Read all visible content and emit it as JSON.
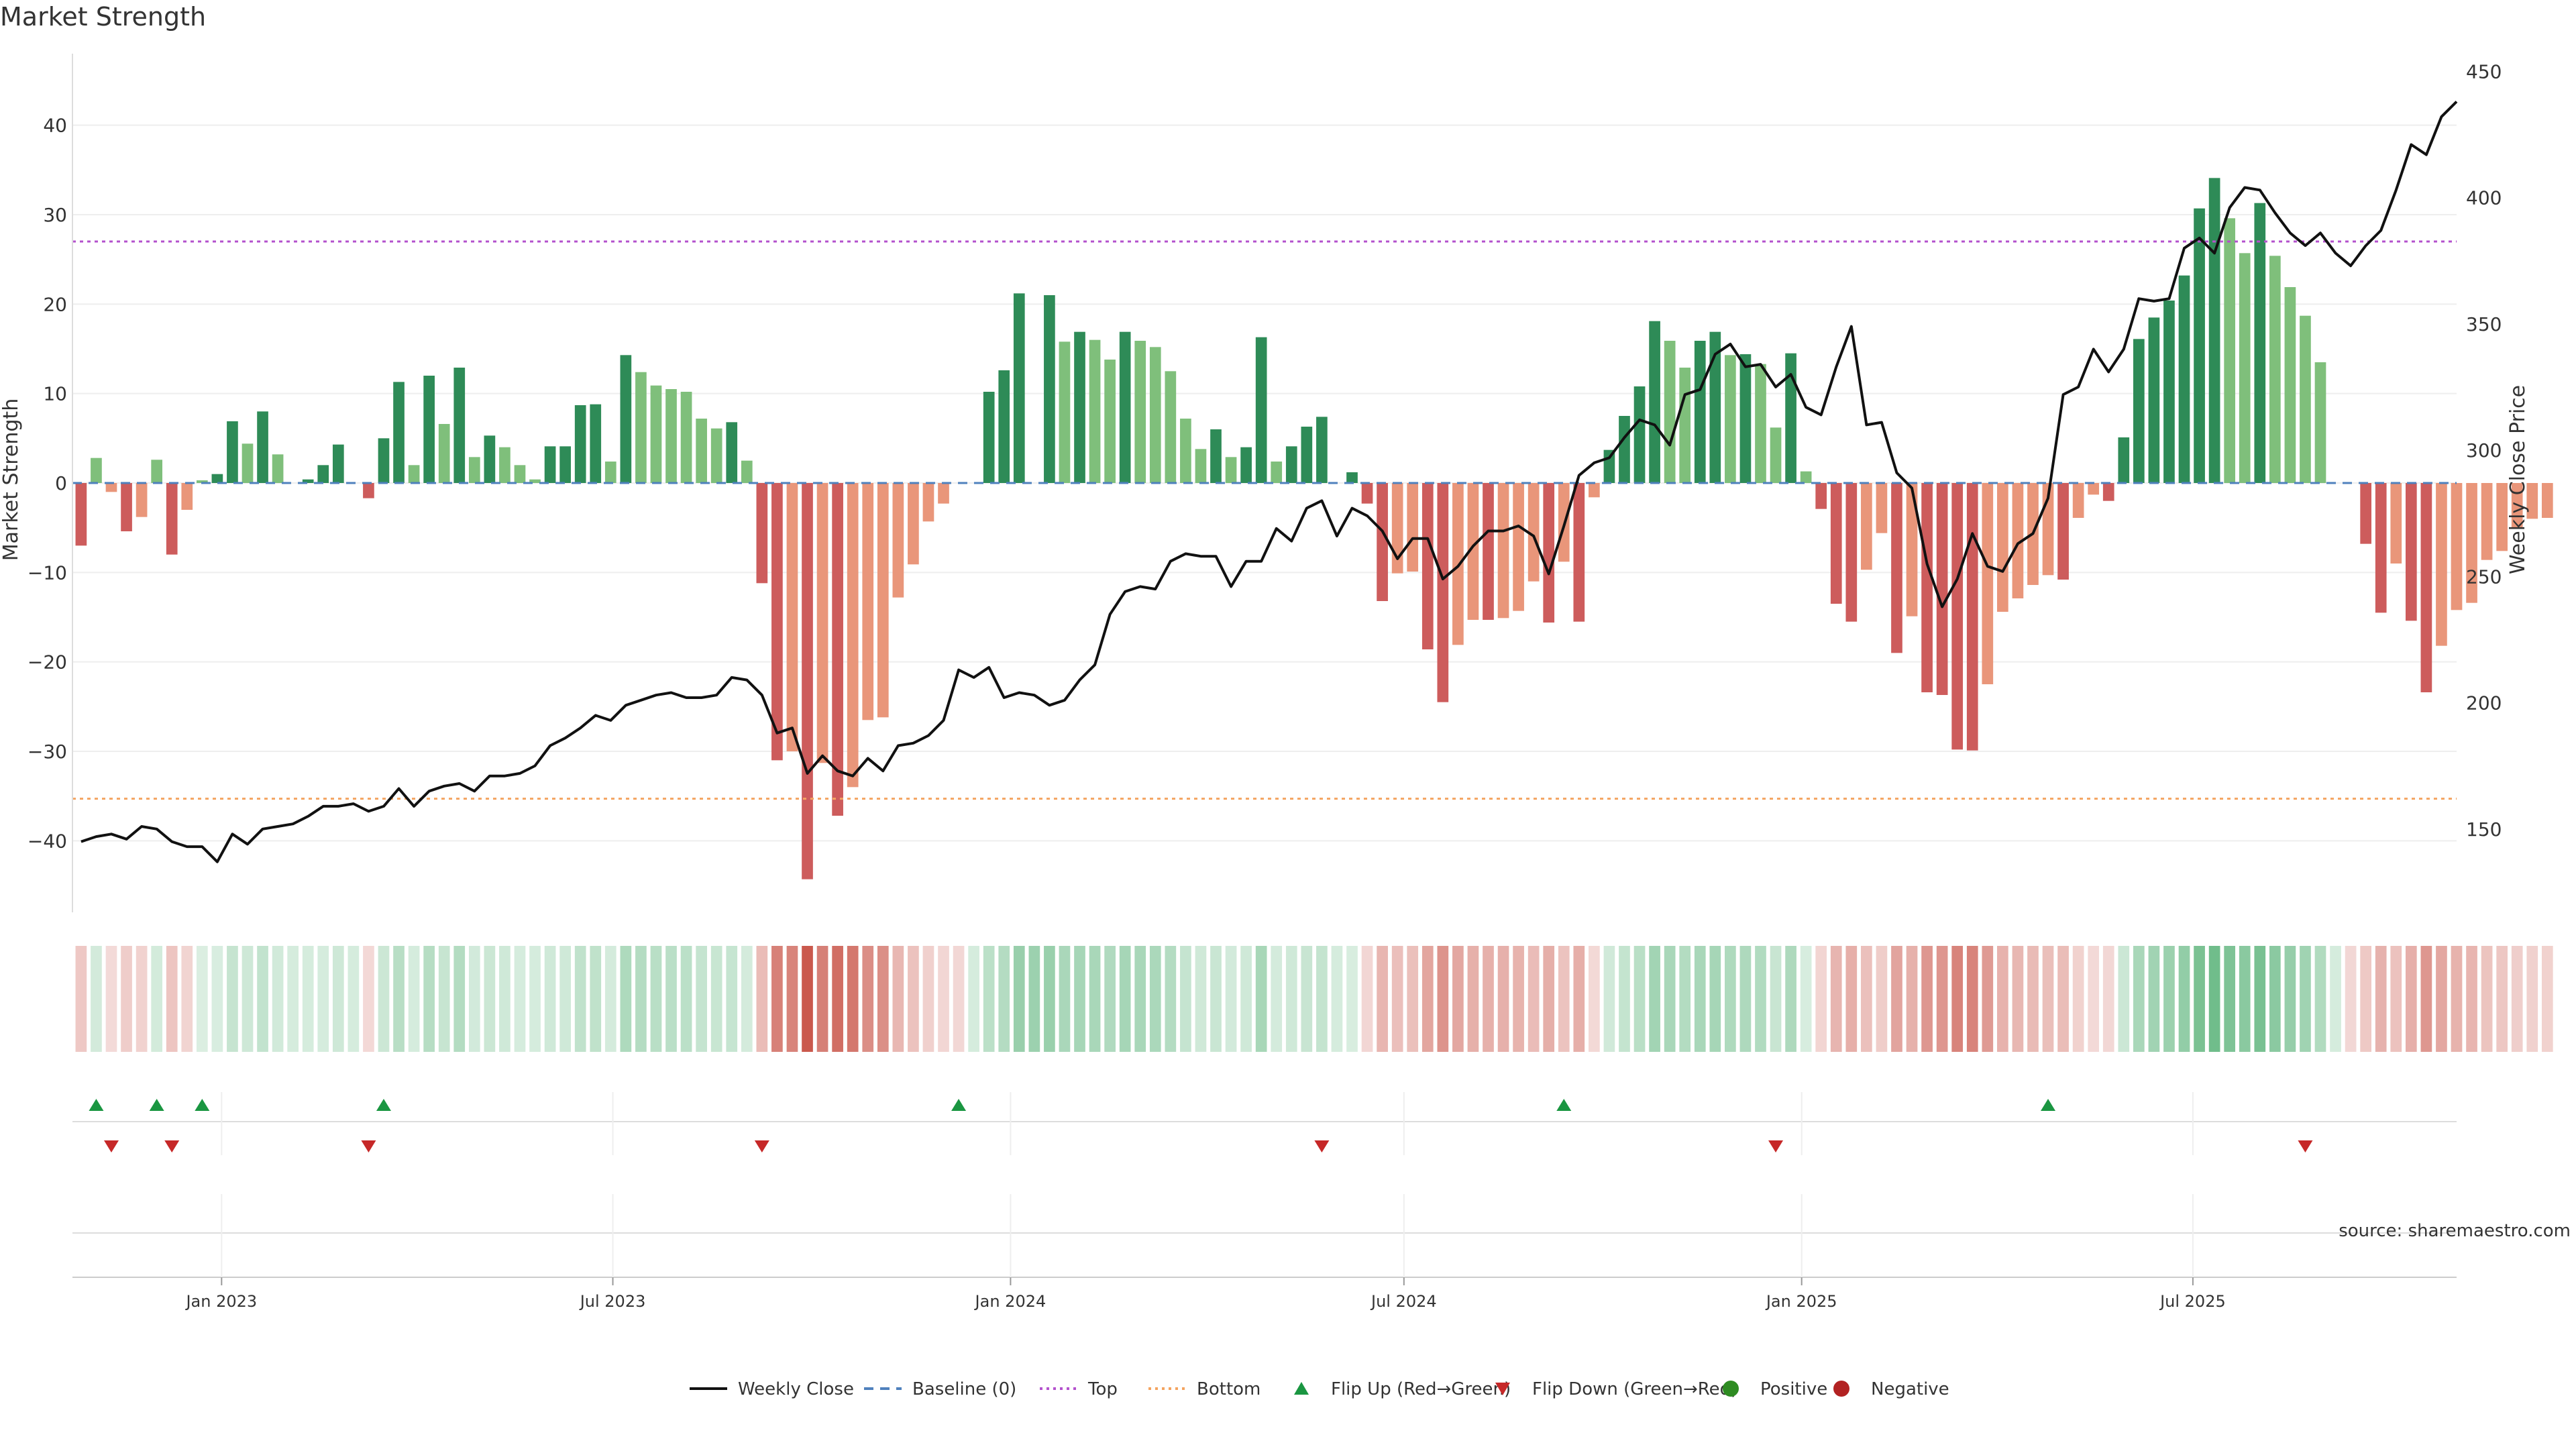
{
  "chart_data": {
    "type": "bar",
    "title": "Market Strength",
    "ylabel": "Market Strength",
    "y2label": "Weekly Close Price",
    "ylim": [
      -48,
      48
    ],
    "y2lim": [
      117,
      457
    ],
    "yticks": [
      -40,
      -30,
      -20,
      -10,
      0,
      10,
      20,
      30,
      40
    ],
    "y2ticks": [
      150,
      200,
      250,
      300,
      350,
      400,
      450
    ],
    "xlim": [
      "2022-10-24",
      "2025-10-31"
    ],
    "xticks": [
      {
        "date": "2023-01-01",
        "label": "Jan 2023"
      },
      {
        "date": "2023-07-01",
        "label": "Jul 2023"
      },
      {
        "date": "2024-01-01",
        "label": "Jan 2024"
      },
      {
        "date": "2024-07-01",
        "label": "Jul 2024"
      },
      {
        "date": "2025-01-01",
        "label": "Jan 2025"
      },
      {
        "date": "2025-07-01",
        "label": "Jul 2025"
      }
    ],
    "top_level": 27,
    "bottom_level": -35.3,
    "start_week": "2022-10-28",
    "strength": [
      -7,
      2.8,
      -1,
      -5.4,
      -3.8,
      2.6,
      -8,
      -3,
      0.3,
      1,
      6.9,
      4.4,
      8,
      3.2,
      0,
      0.4,
      2,
      4.3,
      0,
      -1.7,
      5,
      11.3,
      2,
      12,
      6.6,
      12.9,
      2.9,
      5.3,
      4,
      2,
      0.4,
      4.1,
      4.1,
      8.7,
      8.8,
      2.4,
      14.3,
      12.4,
      10.9,
      10.5,
      10.2,
      7.2,
      6.1,
      6.8,
      2.5,
      -11.2,
      -31,
      -30,
      -44.3,
      -31.3,
      -37.2,
      -34,
      -26.5,
      -26.2,
      -12.8,
      -9.1,
      -4.3,
      -2.3,
      0,
      0,
      10.2,
      12.6,
      21.2,
      0,
      21,
      15.8,
      16.9,
      16,
      13.8,
      16.9,
      15.9,
      15.2,
      12.5,
      7.2,
      3.8,
      6,
      2.9,
      4,
      16.3,
      2.4,
      4.1,
      6.3,
      7.4,
      0,
      1.2,
      -2.3,
      -13.2,
      -10.1,
      -9.9,
      -18.6,
      -24.5,
      -18.1,
      -15.3,
      -15.3,
      -15.1,
      -14.3,
      -11,
      -15.6,
      -8.8,
      -15.5,
      -1.6,
      3.7,
      7.5,
      10.8,
      18.1,
      15.9,
      12.9,
      15.9,
      16.9,
      14.3,
      14.4,
      13.3,
      6.2,
      14.5,
      1.3,
      -2.9,
      -13.5,
      -15.5,
      -9.7,
      -5.6,
      -19,
      -14.9,
      -23.4,
      -23.7,
      -29.8,
      -29.9,
      -22.5,
      -14.4,
      -12.9,
      -11.4,
      -10.3,
      -10.8,
      -3.9,
      -1.3,
      -2,
      5.1,
      16.1,
      18.5,
      20.4,
      23.2,
      30.7,
      34.1,
      29.6,
      25.7,
      31.3,
      25.4,
      21.9,
      18.7,
      13.5,
      0,
      0,
      -6.8,
      -14.5,
      -9,
      -15.4,
      -23.4,
      -18.2,
      -14.2,
      -13.4,
      -8.6,
      -7.6,
      -5.1,
      -4,
      -3.9
    ],
    "weekly_close": [
      145,
      147,
      148,
      146,
      151,
      150,
      145,
      143,
      143,
      137,
      148,
      144,
      150,
      151,
      152,
      155,
      159,
      159,
      160,
      157,
      159,
      166,
      159,
      165,
      167,
      168,
      165,
      171,
      171,
      172,
      175,
      183,
      186,
      190,
      195,
      193,
      199,
      201,
      203,
      204,
      202,
      202,
      203,
      210,
      209,
      203,
      188,
      190,
      172,
      179,
      173,
      171,
      178,
      173,
      183,
      184,
      187,
      193,
      213,
      210,
      214,
      202,
      204,
      203,
      199,
      201,
      209,
      215,
      235,
      244,
      246,
      245,
      256,
      259,
      258,
      258,
      246,
      256,
      256,
      269,
      264,
      277,
      280,
      266,
      277,
      274,
      268,
      257,
      265,
      265,
      249,
      254,
      262,
      268,
      268,
      270,
      266,
      251,
      270,
      290,
      295,
      297,
      305,
      312,
      310,
      302,
      322,
      324,
      338,
      342,
      333,
      334,
      325,
      330,
      317,
      314,
      333,
      349,
      310,
      311,
      291,
      285,
      255,
      238,
      249,
      267,
      254,
      252,
      263,
      267,
      281,
      322,
      325,
      340,
      331,
      340,
      360,
      359,
      360,
      380,
      384,
      378,
      396,
      404,
      403,
      394,
      386,
      381,
      386,
      378,
      373,
      381,
      387,
      403,
      421,
      417,
      432,
      438
    ],
    "heat_strip": [
      -7,
      2.8,
      -1,
      -5.4,
      -3.8,
      2.6,
      -8,
      -3,
      0.3,
      1,
      6.9,
      4.4,
      8,
      3.2,
      2,
      2,
      2,
      4.3,
      2,
      -1.7,
      5,
      11.3,
      2,
      12,
      6.6,
      12.9,
      2.9,
      5.3,
      4,
      2,
      2,
      4.1,
      4.1,
      8.7,
      8.8,
      2.4,
      14.3,
      12.4,
      10.9,
      10.5,
      10.2,
      7.2,
      6.1,
      6.8,
      2.5,
      -11.2,
      -31,
      -30,
      -44.3,
      -31.3,
      -37.2,
      -34,
      -26.5,
      -26.2,
      -12.8,
      -9.1,
      -4.3,
      -2.3,
      -2,
      2,
      10.2,
      12.6,
      21.2,
      20,
      21,
      15.8,
      16.9,
      16,
      13.8,
      16.9,
      15.9,
      15.2,
      12.5,
      7.2,
      3.8,
      6,
      2.9,
      4,
      16.3,
      2.4,
      4.1,
      6.3,
      7.4,
      2,
      1.2,
      -2.3,
      -13.2,
      -10.1,
      -9.9,
      -18.6,
      -24.5,
      -18.1,
      -15.3,
      -15.3,
      -15.1,
      -14.3,
      -11,
      -15.6,
      -8.8,
      -15.5,
      -1.6,
      3.7,
      7.5,
      10.8,
      18.1,
      15.9,
      12.9,
      15.9,
      16.9,
      14.3,
      14.4,
      13.3,
      6.2,
      14.5,
      1.3,
      -2.9,
      -13.5,
      -15.5,
      -9.7,
      -5.6,
      -19,
      -14.9,
      -23.4,
      -23.7,
      -29.8,
      -29.9,
      -22.5,
      -14.4,
      -12.9,
      -11.4,
      -10.3,
      -10.8,
      -3.9,
      -1.3,
      -2,
      5.1,
      16.1,
      18.5,
      20.4,
      23.2,
      30.7,
      34.1,
      29.6,
      25.7,
      31.3,
      25.4,
      21.9,
      18.7,
      13.5,
      2,
      -2,
      -6.8,
      -14.5,
      -9,
      -15.4,
      -23.4,
      -18.2,
      -14.2,
      -13.4,
      -8.6,
      -7.6,
      -5.1,
      -4,
      -3.9
    ],
    "flip_up_weeks": [
      1,
      5,
      8,
      20,
      58,
      98,
      130
    ],
    "flip_down_weeks": [
      2,
      6,
      19,
      45,
      82,
      112,
      147
    ],
    "legend": [
      {
        "label": "Weekly Close",
        "kind": "line"
      },
      {
        "label": "Baseline (0)",
        "kind": "dash"
      },
      {
        "label": "Top",
        "kind": "dot-purple"
      },
      {
        "label": "Bottom",
        "kind": "dot-orange"
      },
      {
        "label": "Flip Up (Red→Green)",
        "kind": "tri-up"
      },
      {
        "label": "Flip Down (Green→Red)",
        "kind": "tri-down"
      },
      {
        "label": "Positive",
        "kind": "dot-green"
      },
      {
        "label": "Negative",
        "kind": "dot-red"
      }
    ],
    "legend_position": "bottom-center",
    "source_note": "source: sharemaestro.com",
    "colors": {
      "pos_strong": "#2e8b57",
      "pos_light": "#7fbf7b",
      "neg_strong": "#cd5c5c",
      "neg_light": "#e9967a",
      "line": "#111111",
      "baseline": "#4f81bd",
      "top": "#b452cd",
      "bottom": "#f4a460",
      "flip_up": "#1a9641",
      "flip_down": "#c62828",
      "positive_dot": "#2e8b22",
      "negative_dot": "#b22222",
      "grid": "#eeeeee"
    }
  }
}
